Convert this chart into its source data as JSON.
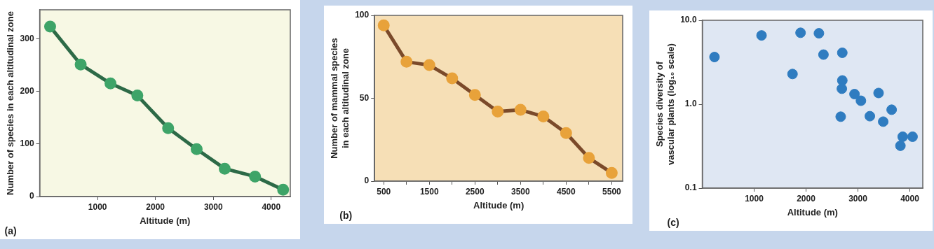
{
  "chart_data": [
    {
      "type": "line",
      "xlabel": "Altitude (m)",
      "ylabel": "Number of species in each altitudinal zone",
      "annotations": [
        "(a)"
      ],
      "xlim": [
        0,
        4330
      ],
      "ylim": [
        0,
        355
      ],
      "xticks": [
        1000,
        2000,
        3000,
        4000
      ],
      "yticks": [
        0,
        100,
        200,
        300
      ],
      "grid": false,
      "legend": false,
      "marker": "circle",
      "line_style": "solid",
      "series": [
        {
          "color": "#2d6a47",
          "colors": [
            "#3ea468",
            "#3ea468",
            "#3ea468",
            "#3ea468",
            "#3ea468",
            "#3ea468",
            "#3ea468",
            "#3ea468",
            "#3ea468"
          ],
          "x": [
            180,
            708,
            1223,
            1687,
            2219,
            2712,
            3197,
            3721,
            4206
          ],
          "values": [
            323,
            251,
            215,
            192,
            130,
            90,
            53,
            38,
            13
          ]
        }
      ]
    },
    {
      "type": "line",
      "xlabel": "Altitude (m)",
      "ylabel": "Number of mammal species in each altitudinal zone",
      "annotations": [
        "(b)"
      ],
      "xlim": [
        300,
        5740
      ],
      "ylim": [
        0,
        100
      ],
      "xticks": [
        500,
        {
          "value": 1000,
          "label": null
        },
        1500,
        {
          "value": 2000,
          "label": null
        },
        2500,
        {
          "value": 3000,
          "label": null
        },
        3500,
        {
          "value": 4000,
          "label": null
        },
        4500,
        {
          "value": 5000,
          "label": null
        },
        5500
      ],
      "yticks": [
        0,
        50,
        100
      ],
      "grid": false,
      "legend": false,
      "marker": "circle",
      "line_style": "solid",
      "series": [
        {
          "color": "#7b4a2a",
          "colors": [
            "#e8a23a",
            "#e8a23a",
            "#e8a23a",
            "#e8a23a",
            "#e8a23a",
            "#e8a23a",
            "#e8a23a",
            "#e8a23a",
            "#e8a23a",
            "#e8a23a",
            "#e8a23a"
          ],
          "x": [
            500,
            1000,
            1500,
            2000,
            2500,
            3000,
            3500,
            4000,
            4500,
            5000,
            5500
          ],
          "values": [
            94,
            72,
            70,
            62,
            52,
            42,
            43,
            39,
            29,
            14,
            5
          ]
        }
      ]
    },
    {
      "type": "scatter",
      "xlabel": "Altitude (m)",
      "ylabel": "Species diversity of vascular plants (log₁₀ scale)",
      "annotations": [
        "(c)"
      ],
      "xlim": [
        0,
        4250
      ],
      "ylim": [
        0.1,
        10
      ],
      "xticks": [
        1000,
        2000,
        3000,
        4000
      ],
      "yticks": [
        0.1,
        {
          "value": 1,
          "label": "1.0"
        },
        {
          "value": 10,
          "label": "10.0"
        }
      ],
      "log": "y",
      "grid": false,
      "legend": false,
      "marker": "circle",
      "series": [
        {
          "color": "#2f7cc0",
          "x": [
            235,
            1142,
            1739,
            1894,
            2248,
            2336,
            2699,
            2699,
            2690,
            2668,
            2934,
            3058,
            3230,
            3398,
            3487,
            3650,
            3863,
            4053,
            3819
          ],
          "values": [
            3.65,
            6.6,
            2.29,
            7.1,
            7.0,
            3.9,
            4.1,
            1.92,
            1.53,
            0.71,
            1.32,
            1.1,
            0.72,
            1.36,
            0.62,
            0.86,
            0.41,
            0.41,
            0.32
          ]
        }
      ]
    }
  ]
}
